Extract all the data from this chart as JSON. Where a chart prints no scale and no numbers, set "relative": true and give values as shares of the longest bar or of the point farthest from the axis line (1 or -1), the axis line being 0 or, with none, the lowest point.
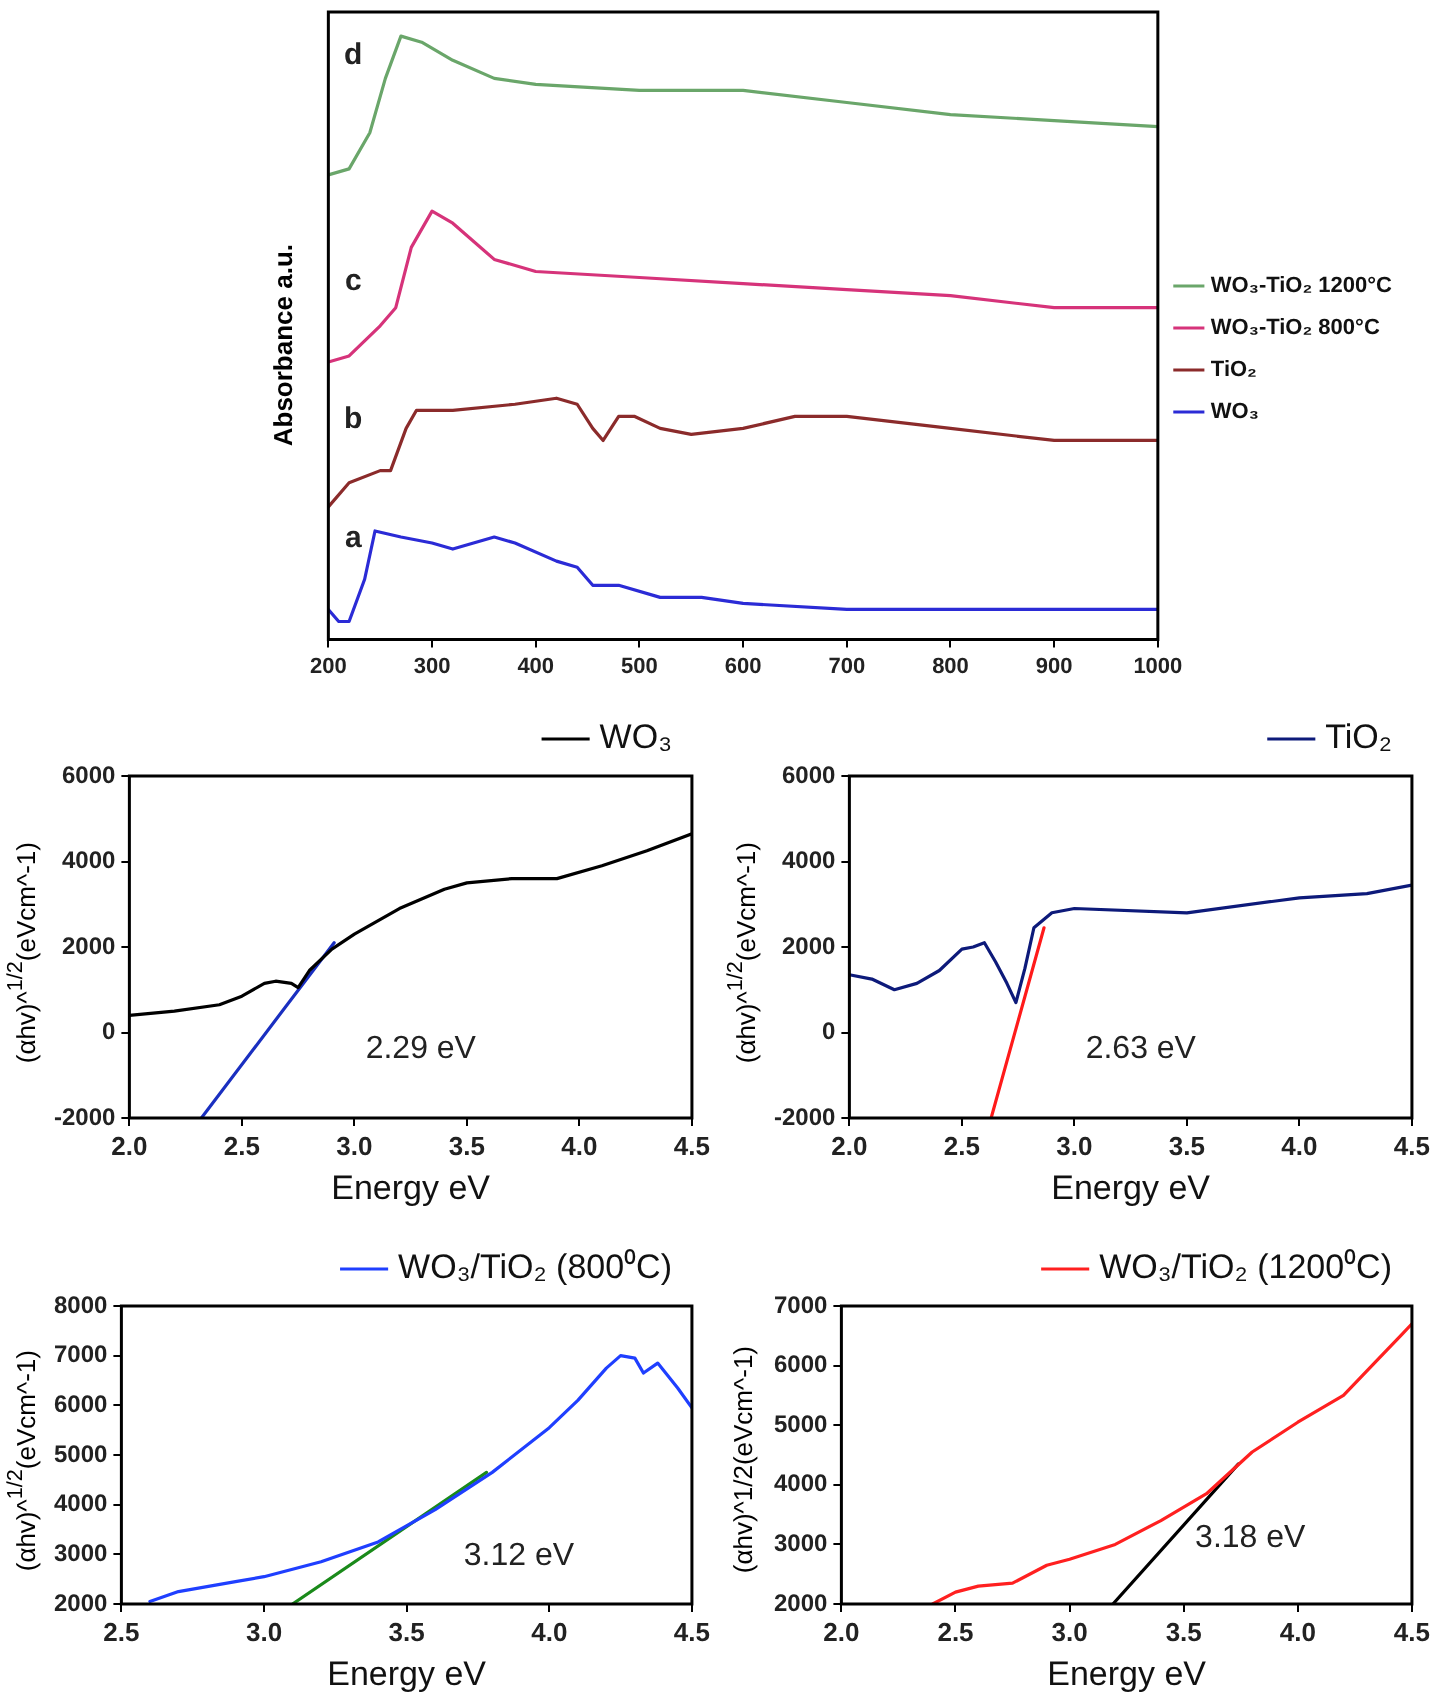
{
  "chart_data": [
    {
      "type": "line",
      "relative": true,
      "ylabel": "Absorbance a.u.",
      "xlim": [
        200,
        1000
      ],
      "xticks": [
        200,
        300,
        400,
        500,
        600,
        700,
        800,
        900,
        1000
      ],
      "legend": "right",
      "series": [
        {
          "name": "WO₃-TiO₂ 1200°C",
          "color": "#6aa66a",
          "x": [
            200,
            220,
            240,
            255,
            270,
            290,
            320,
            360,
            400,
            500,
            600,
            700,
            800,
            900,
            1000
          ],
          "values": [
            0.77,
            0.78,
            0.84,
            0.93,
            1,
            0.99,
            0.96,
            0.93,
            0.92,
            0.91,
            0.91,
            0.89,
            0.87,
            0.86,
            0.85
          ]
        },
        {
          "name": "WO₃-TiO₂ 800°C",
          "color": "#d6337a",
          "x": [
            200,
            220,
            250,
            265,
            280,
            300,
            320,
            360,
            400,
            500,
            600,
            700,
            800,
            900,
            930,
            1000
          ],
          "values": [
            0.46,
            0.47,
            0.52,
            0.55,
            0.65,
            0.71,
            0.69,
            0.63,
            0.61,
            0.6,
            0.59,
            0.58,
            0.57,
            0.55,
            0.55,
            0.55
          ]
        },
        {
          "name": "TiO₂",
          "color": "#8b2b2b",
          "x": [
            200,
            220,
            250,
            260,
            275,
            285,
            320,
            380,
            420,
            440,
            455,
            465,
            480,
            495,
            520,
            550,
            600,
            650,
            700,
            800,
            900,
            950,
            1000
          ],
          "values": [
            0.22,
            0.26,
            0.28,
            0.28,
            0.35,
            0.38,
            0.38,
            0.39,
            0.4,
            0.39,
            0.35,
            0.33,
            0.37,
            0.37,
            0.35,
            0.34,
            0.35,
            0.37,
            0.37,
            0.35,
            0.33,
            0.33,
            0.33
          ]
        },
        {
          "name": "WO₃",
          "color": "#2b2bd6",
          "x": [
            200,
            210,
            220,
            235,
            245,
            270,
            300,
            320,
            360,
            380,
            420,
            440,
            455,
            480,
            520,
            560,
            600,
            700,
            800,
            900,
            1000
          ],
          "values": [
            0.05,
            0.03,
            0.03,
            0.1,
            0.18,
            0.17,
            0.16,
            0.15,
            0.17,
            0.16,
            0.13,
            0.12,
            0.09,
            0.09,
            0.07,
            0.07,
            0.06,
            0.05,
            0.05,
            0.05,
            0.05
          ]
        }
      ],
      "annotations": [
        "a",
        "b",
        "c",
        "d"
      ]
    },
    {
      "type": "line",
      "xlabel": "Energy eV",
      "ylabel": "(αhv)^$^{1/2}$(eVcm^-1)",
      "xlim": [
        2,
        4.5
      ],
      "xticks": [
        {
          "value": 2,
          "label": "2.0"
        },
        {
          "value": 2.5,
          "label": "2.5"
        },
        {
          "value": 3,
          "label": "3.0"
        },
        {
          "value": 3.5,
          "label": "3.5"
        },
        {
          "value": 4,
          "label": "4.0"
        },
        {
          "value": 4.5,
          "label": "4.5"
        }
      ],
      "ylim": [
        -2000,
        6000
      ],
      "yticks": [
        -2000,
        0,
        2000,
        4000,
        6000
      ],
      "legend": "top right",
      "series": [
        {
          "name": "WO₃",
          "color": "#000000",
          "x": [
            2.0,
            2.2,
            2.4,
            2.5,
            2.6,
            2.65,
            2.72,
            2.75,
            2.8,
            2.9,
            3.0,
            3.2,
            3.4,
            3.5,
            3.7,
            3.9,
            4.1,
            4.3,
            4.5
          ],
          "values": [
            400,
            500,
            650,
            850,
            1150,
            1200,
            1150,
            1050,
            1450,
            1950,
            2300,
            2900,
            3350,
            3500,
            3600,
            3600,
            3900,
            4250,
            4650
          ]
        },
        {
          "type": "line",
          "color": "#1a2fc0",
          "x": [
            2.32,
            2.91
          ],
          "values": [
            -2000,
            2100
          ]
        }
      ],
      "annotations": [
        "2.29 eV"
      ]
    },
    {
      "type": "line",
      "xlabel": "Energy eV",
      "ylabel": "(αhv)^$^{1/2}$(eVcm^-1)",
      "xlim": [
        2,
        4.5
      ],
      "xticks": [
        {
          "value": 2,
          "label": "2.0"
        },
        {
          "value": 2.5,
          "label": "2.5"
        },
        {
          "value": 3,
          "label": "3.0"
        },
        {
          "value": 3.5,
          "label": "3.5"
        },
        {
          "value": 4,
          "label": "4.0"
        },
        {
          "value": 4.5,
          "label": "4.5"
        }
      ],
      "ylim": [
        -2000,
        6000
      ],
      "yticks": [
        -2000,
        0,
        2000,
        4000,
        6000
      ],
      "legend": "top right",
      "series": [
        {
          "name": "TiO₂",
          "color": "#0d1a7a",
          "x": [
            2.0,
            2.1,
            2.2,
            2.3,
            2.4,
            2.5,
            2.55,
            2.6,
            2.65,
            2.7,
            2.74,
            2.78,
            2.82,
            2.9,
            3.0,
            3.5,
            4.0,
            4.3,
            4.5
          ],
          "values": [
            1350,
            1250,
            1000,
            1150,
            1450,
            1950,
            2000,
            2100,
            1650,
            1150,
            700,
            1500,
            2450,
            2800,
            2900,
            2800,
            3150,
            3250,
            3450
          ]
        },
        {
          "type": "line",
          "color": "#ff1a1a",
          "x": [
            2.63,
            2.865
          ],
          "values": [
            -2000,
            2450
          ]
        }
      ],
      "annotations": [
        "2.63 eV"
      ]
    },
    {
      "type": "line",
      "xlabel": "Energy eV",
      "ylabel": "(αhv)^$^{1/2}$(eVcm^-1)",
      "xlim": [
        2.5,
        4.5
      ],
      "xticks": [
        {
          "value": 2.5,
          "label": "2.5"
        },
        {
          "value": 3,
          "label": "3.0"
        },
        {
          "value": 3.5,
          "label": "3.5"
        },
        {
          "value": 4,
          "label": "4.0"
        },
        {
          "value": 4.5,
          "label": "4.5"
        }
      ],
      "ylim": [
        2000,
        8000
      ],
      "yticks": [
        2000,
        3000,
        4000,
        5000,
        6000,
        7000,
        8000
      ],
      "legend": "top right",
      "series": [
        {
          "name": "WO₃/TiO₂ (800⁰C)",
          "color": "#1f3fff",
          "x": [
            2.6,
            2.7,
            2.8,
            2.9,
            3.0,
            3.2,
            3.4,
            3.6,
            3.8,
            4.0,
            4.1,
            4.2,
            4.25,
            4.3,
            4.33,
            4.38,
            4.45,
            4.5
          ],
          "values": [
            2050,
            2250,
            2350,
            2450,
            2550,
            2850,
            3250,
            3900,
            4650,
            5550,
            6100,
            6750,
            7000,
            6950,
            6650,
            6850,
            6350,
            5950
          ]
        },
        {
          "type": "line",
          "color": "#1a8a1a",
          "x": [
            3.1,
            3.78
          ],
          "values": [
            2000,
            4650
          ]
        }
      ],
      "annotations": [
        "3.12 eV"
      ]
    },
    {
      "type": "line",
      "xlabel": "Energy eV",
      "ylabel": "(αhv)^1/2(eVcm^-1)",
      "xlim": [
        2,
        4.5
      ],
      "xticks": [
        {
          "value": 2,
          "label": "2.0"
        },
        {
          "value": 2.5,
          "label": "2.5"
        },
        {
          "value": 3,
          "label": "3.0"
        },
        {
          "value": 3.5,
          "label": "3.5"
        },
        {
          "value": 4,
          "label": "4.0"
        },
        {
          "value": 4.5,
          "label": "4.5"
        }
      ],
      "ylim": [
        2000,
        7000
      ],
      "yticks": [
        2000,
        3000,
        4000,
        5000,
        6000,
        7000
      ],
      "legend": "top right",
      "series": [
        {
          "name": "WO₃/TiO₂ (1200⁰C)",
          "color": "#ff2020",
          "x": [
            2.4,
            2.5,
            2.6,
            2.75,
            2.9,
            3.0,
            3.2,
            3.4,
            3.6,
            3.8,
            4.0,
            4.2,
            4.35,
            4.45,
            4.5
          ],
          "values": [
            2000,
            2200,
            2300,
            2350,
            2650,
            2750,
            3000,
            3400,
            3850,
            4550,
            5050,
            5500,
            6100,
            6500,
            6700
          ]
        },
        {
          "type": "line",
          "color": "#000000",
          "x": [
            3.19,
            3.74
          ],
          "values": [
            2000,
            4350
          ]
        }
      ],
      "annotations": [
        "3.18 eV"
      ]
    }
  ]
}
